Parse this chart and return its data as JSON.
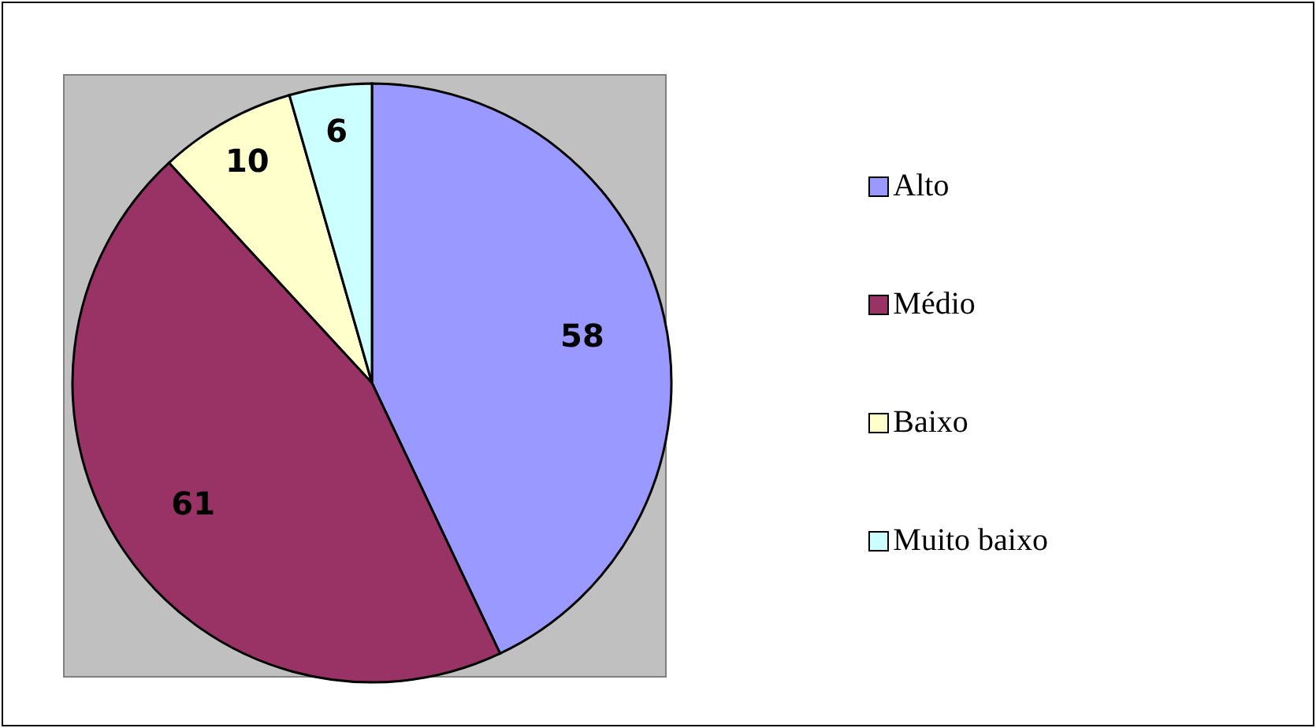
{
  "chart_data": {
    "type": "pie",
    "categories": [
      "Alto",
      "Médio",
      "Baixo",
      "Muito baixo"
    ],
    "values": [
      58,
      61,
      10,
      6
    ],
    "colors": [
      "#9999ff",
      "#993366",
      "#ffffcc",
      "#ccffff"
    ],
    "data_labels": true,
    "legend": "right"
  }
}
